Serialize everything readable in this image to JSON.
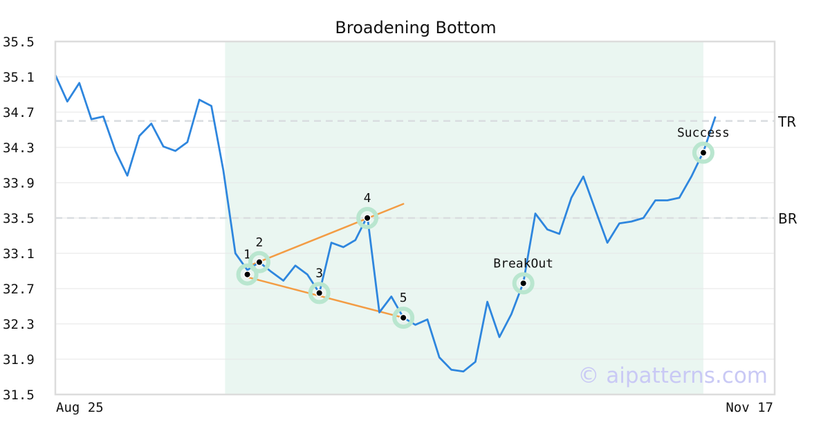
{
  "chart_data": {
    "type": "line",
    "title": "Broadening Bottom",
    "ylim": [
      31.5,
      35.5
    ],
    "y_ticks": [
      "35.5",
      "35.1",
      "34.7",
      "34.3",
      "33.9",
      "33.5",
      "33.1",
      "32.7",
      "32.3",
      "31.9",
      "31.5"
    ],
    "x_tick_labels": {
      "first": "Aug 25",
      "last": "Nov 17"
    },
    "grid": true,
    "colors": {
      "price": "#2e86de",
      "trendline": "#f39c44",
      "highlight_region": "#eaf6f1",
      "marker_ring": "#b9e6cf",
      "reference_line": "#d9dde0",
      "watermark": "#c9c9f5"
    },
    "series": [
      {
        "values": [
          35.12,
          34.82,
          35.03,
          34.62,
          34.65,
          34.26,
          33.98,
          34.43,
          34.57,
          34.31,
          34.26,
          34.36,
          34.84,
          34.77,
          34.04,
          33.1,
          32.91,
          33.0,
          32.89,
          32.79,
          32.96,
          32.86,
          32.65,
          33.22,
          33.17,
          33.25,
          33.52,
          32.43,
          32.61,
          32.37,
          32.29,
          32.35,
          31.92,
          31.78,
          31.76,
          31.87,
          32.55,
          32.15,
          32.41,
          32.77,
          33.55,
          33.37,
          33.32,
          33.73,
          33.97,
          33.59,
          33.22,
          33.44,
          33.46,
          33.5,
          33.7,
          33.7,
          33.73,
          33.97,
          34.25,
          34.65
        ]
      }
    ],
    "highlight_region": {
      "start_index": 14,
      "end_index": 54
    },
    "reference_lines": [
      {
        "label": "TR",
        "value": 34.6
      },
      {
        "label": "BR",
        "value": 33.5
      }
    ],
    "trendlines": [
      {
        "from": {
          "x": 16,
          "y": 32.95
        },
        "to": {
          "x": 29,
          "y": 33.66
        }
      },
      {
        "from": {
          "x": 16,
          "y": 32.83
        },
        "to": {
          "x": 29,
          "y": 32.37
        }
      }
    ],
    "annotations": [
      {
        "label": "1",
        "x": 16,
        "y": 32.86,
        "label_pos": "above"
      },
      {
        "label": "2",
        "x": 17,
        "y": 33.0,
        "label_pos": "above"
      },
      {
        "label": "3",
        "x": 22,
        "y": 32.65,
        "label_pos": "above"
      },
      {
        "label": "4",
        "x": 26,
        "y": 33.5,
        "label_pos": "above"
      },
      {
        "label": "5",
        "x": 29,
        "y": 32.37,
        "label_pos": "above"
      },
      {
        "label": "BreakOut",
        "x": 39,
        "y": 32.76,
        "label_pos": "above"
      },
      {
        "label": "Success",
        "x": 54,
        "y": 34.24,
        "label_pos": "above"
      }
    ],
    "watermark": "© aipatterns.com"
  }
}
